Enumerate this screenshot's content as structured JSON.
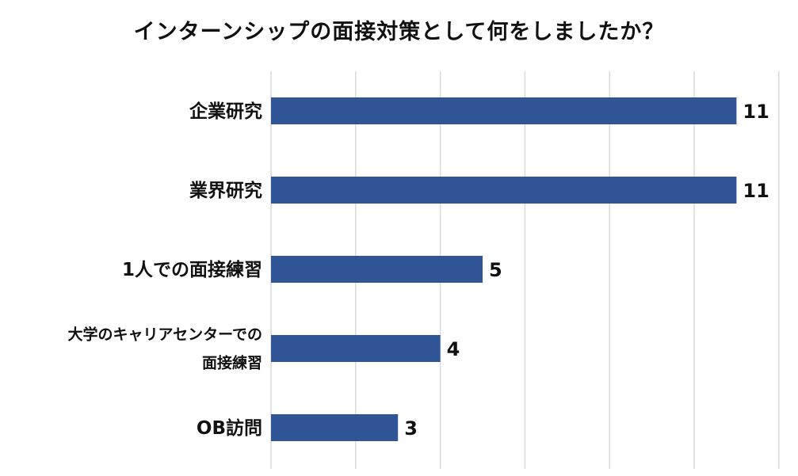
{
  "chart_data": {
    "type": "bar",
    "orientation": "horizontal",
    "title": "インターンシップの面接対策として何をしましたか？",
    "categories": [
      [
        "企業研究"
      ],
      [
        "業界研究"
      ],
      [
        "1人での面接練習"
      ],
      [
        "大学のキャリアセンターでの",
        "面接練習"
      ],
      [
        "OB訪問"
      ]
    ],
    "values": [
      11,
      11,
      5,
      4,
      3
    ],
    "data_labels": [
      "11",
      "11",
      "5",
      "4",
      "3"
    ],
    "xlim": [
      0,
      12
    ],
    "x_gridlines": true,
    "legend": "none",
    "colors": {
      "bar": "#2f5597",
      "grid": "#d9d9d9",
      "text": "#111111"
    }
  }
}
